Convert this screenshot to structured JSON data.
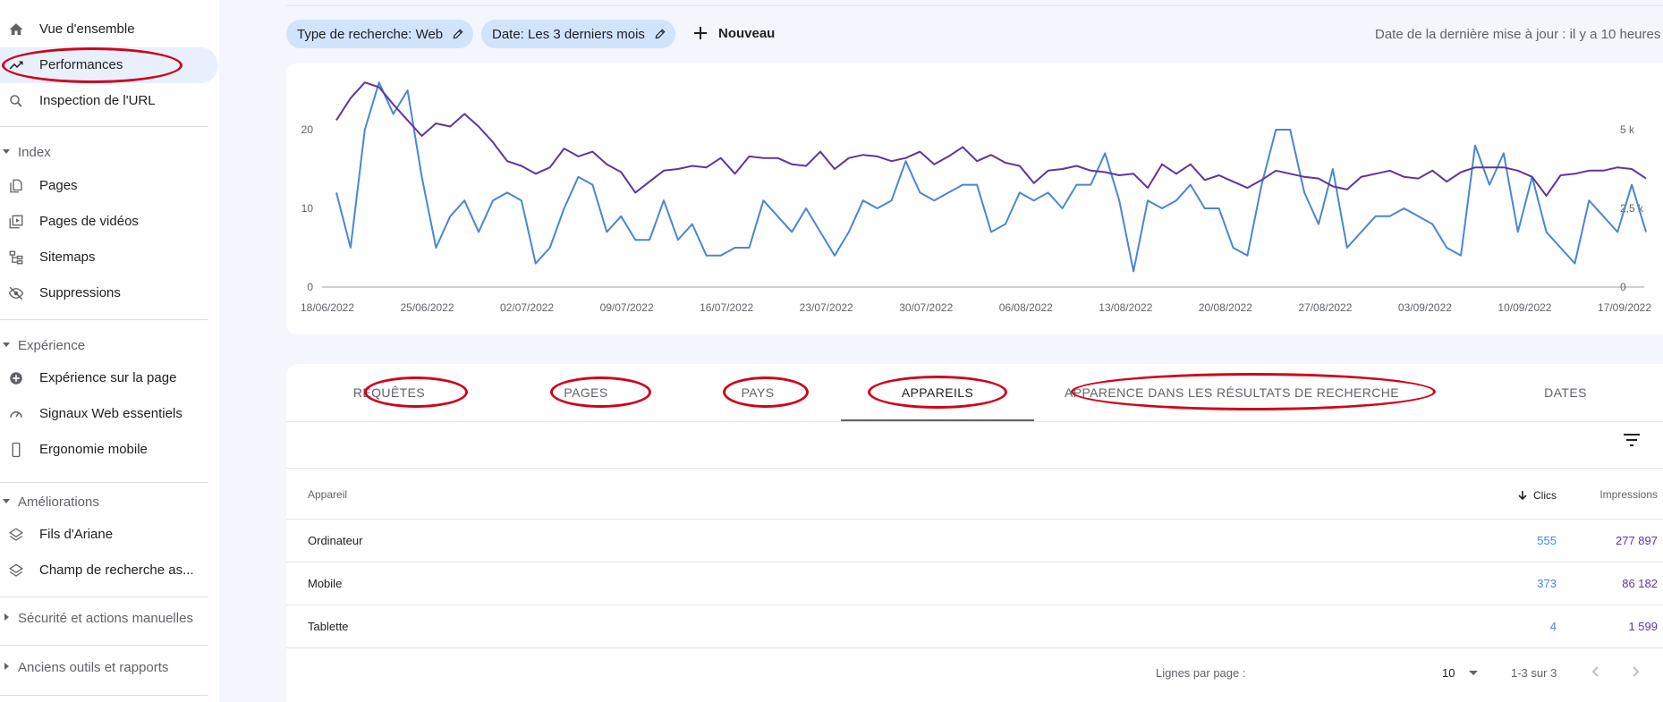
{
  "sidebar": {
    "items": [
      {
        "label": "Vue d'ensemble",
        "icon": "home-icon"
      },
      {
        "label": "Performances",
        "icon": "trending-up-icon",
        "active": true
      },
      {
        "label": "Inspection de l'URL",
        "icon": "search-icon"
      }
    ],
    "sections": [
      {
        "title": "Index",
        "items": [
          {
            "label": "Pages",
            "icon": "pages-icon"
          },
          {
            "label": "Pages de vidéos",
            "icon": "video-pages-icon"
          },
          {
            "label": "Sitemaps",
            "icon": "sitemap-icon"
          },
          {
            "label": "Suppressions",
            "icon": "eye-off-icon"
          }
        ]
      },
      {
        "title": "Expérience",
        "items": [
          {
            "label": "Expérience sur la page",
            "icon": "plus-circle-icon"
          },
          {
            "label": "Signaux Web essentiels",
            "icon": "gauge-icon"
          },
          {
            "label": "Ergonomie mobile",
            "icon": "phone-icon"
          }
        ]
      },
      {
        "title": "Améliorations",
        "items": [
          {
            "label": "Fils d'Ariane",
            "icon": "layers-icon"
          },
          {
            "label": "Champ de recherche as...",
            "icon": "layers-icon"
          }
        ]
      },
      {
        "title": "Sécurité et actions manuelles"
      },
      {
        "title": "Anciens outils et rapports"
      }
    ]
  },
  "toolbar": {
    "chip_search_type": "Type de recherche: Web",
    "chip_date": "Date: Les 3 derniers mois",
    "new_label": "Nouveau",
    "last_update": "Date de la dernière mise à jour : il y a 10 heures ("
  },
  "chart_data": {
    "type": "line",
    "x_tick_labels": [
      "18/06/2022",
      "25/06/2022",
      "02/07/2022",
      "09/07/2022",
      "16/07/2022",
      "23/07/2022",
      "30/07/2022",
      "06/08/2022",
      "13/08/2022",
      "20/08/2022",
      "27/08/2022",
      "03/09/2022",
      "10/09/2022",
      "17/09/2022"
    ],
    "y_left_ticks": [
      "0",
      "10",
      "20"
    ],
    "y_right_ticks": [
      "0",
      "2,5 k",
      "5 k"
    ],
    "ylim_left": [
      0,
      25
    ],
    "ylim_right": [
      0,
      6250
    ],
    "grid": false,
    "series": [
      {
        "axis": "left",
        "color": "#4a86d4",
        "values": [
          12,
          5,
          20,
          26,
          22,
          25,
          14,
          5,
          9,
          11,
          7,
          11,
          12,
          11,
          3,
          5,
          10,
          14,
          13,
          7,
          9,
          6,
          6,
          11,
          6,
          8,
          4,
          4,
          5,
          5,
          11,
          9,
          7,
          10,
          7,
          4,
          7,
          11,
          10,
          11,
          16,
          12,
          11,
          12,
          13,
          13,
          7,
          8,
          12,
          11,
          12,
          10,
          13,
          13,
          17,
          11,
          2,
          11,
          10,
          11,
          13,
          10,
          10,
          5,
          4,
          13,
          20,
          20,
          12,
          8,
          15,
          5,
          7,
          9,
          9,
          10,
          9,
          8,
          5,
          4,
          18,
          13,
          17,
          7,
          14,
          7,
          5,
          3,
          11,
          9,
          7,
          13,
          7
        ]
      },
      {
        "axis": "right",
        "color": "#5e35a1",
        "values": [
          5300,
          6000,
          6500,
          6350,
          5800,
          5300,
          4800,
          5200,
          5100,
          5500,
          5100,
          4600,
          4000,
          3850,
          3600,
          3800,
          4400,
          4150,
          4300,
          3900,
          3650,
          3000,
          3350,
          3700,
          3750,
          3850,
          3800,
          4100,
          3600,
          4150,
          4100,
          4100,
          3900,
          3850,
          4300,
          3750,
          4100,
          4200,
          4150,
          4000,
          4100,
          4300,
          3900,
          4150,
          4450,
          4000,
          4200,
          3950,
          3850,
          3300,
          3700,
          3750,
          3850,
          3700,
          3650,
          3550,
          3600,
          3150,
          3900,
          3600,
          3900,
          3400,
          3550,
          3350,
          3150,
          3400,
          3700,
          3600,
          3500,
          3450,
          3200,
          3100,
          3500,
          3600,
          3700,
          3500,
          3450,
          3700,
          3350,
          3650,
          3800,
          3800,
          3800,
          3700,
          3500,
          2900,
          3550,
          3600,
          3700,
          3700,
          3800,
          3750,
          3450
        ]
      }
    ]
  },
  "tabs": [
    {
      "label": "REQUÊTES"
    },
    {
      "label": "PAGES"
    },
    {
      "label": "PAYS"
    },
    {
      "label": "APPAREILS",
      "active": true
    },
    {
      "label": "APPARENCE DANS LES RÉSULTATS DE RECHERCHE"
    },
    {
      "label": "DATES"
    }
  ],
  "table": {
    "columns": {
      "device": "Appareil",
      "clicks": "Clics",
      "impressions": "Impressions"
    },
    "rows": [
      {
        "device": "Ordinateur",
        "clicks": "555",
        "impressions": "277 897"
      },
      {
        "device": "Mobile",
        "clicks": "373",
        "impressions": "86 182"
      },
      {
        "device": "Tablette",
        "clicks": "4",
        "impressions": "1 599"
      }
    ]
  },
  "pagination": {
    "rows_per_page_label": "Lignes par page :",
    "rows_per_page": "10",
    "range": "1-3 sur 3"
  }
}
